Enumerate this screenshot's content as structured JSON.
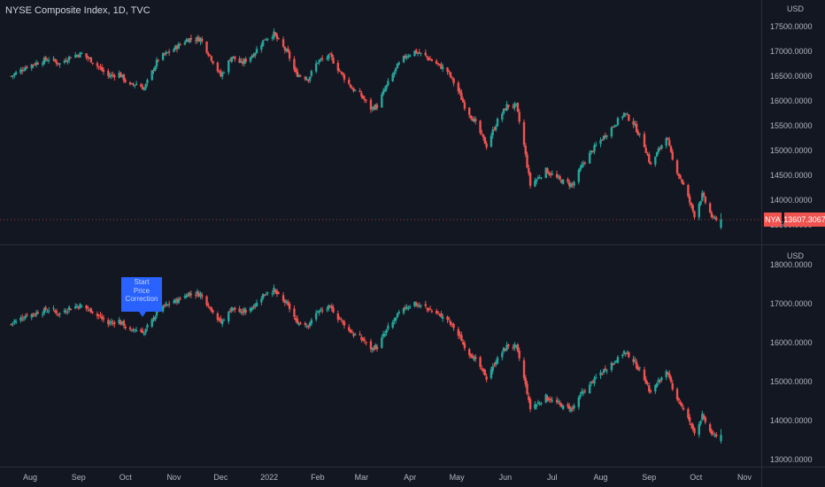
{
  "header": {
    "title": "NYSE Composite Index, 1D, TVC"
  },
  "annotation": {
    "line1": "Start",
    "line2": "Price",
    "line3": "Correction"
  },
  "colors": {
    "background": "#131722",
    "up": "#26a69a",
    "down": "#ef5350",
    "text": "#b2b5be",
    "grid": "#2a2e39",
    "price_tag": "#ef5350",
    "callout": "#2962ff"
  },
  "chart_data": [
    {
      "type": "candlestick",
      "title": "NYSE Composite Index, 1D, TVC",
      "currency": "USD",
      "symbol_tag": "NYA",
      "last_price": "13607.3067",
      "ylim": [
        13050,
        17950
      ],
      "y_ticks": [
        "17500.0000",
        "17000.0000",
        "16500.0000",
        "16000.0000",
        "15500.0000",
        "15000.0000",
        "14500.0000",
        "14000.0000",
        "13500.0000"
      ],
      "x_ticks": [
        "Aug",
        "Sep",
        "Oct",
        "Nov",
        "Dec",
        "2022",
        "Feb",
        "Mar",
        "Apr",
        "May",
        "Jun",
        "Jul",
        "Aug",
        "Sep",
        "Oct",
        "Nov"
      ],
      "path": [
        [
          "2021-07-20",
          16500
        ],
        [
          "2021-07-30",
          16700
        ],
        [
          "2021-08-13",
          16850
        ],
        [
          "2021-08-20",
          16750
        ],
        [
          "2021-08-27",
          16900
        ],
        [
          "2021-09-03",
          16950
        ],
        [
          "2021-09-10",
          16800
        ],
        [
          "2021-09-20",
          16500
        ],
        [
          "2021-09-27",
          16550
        ],
        [
          "2021-10-04",
          16300
        ],
        [
          "2021-10-08",
          16350
        ],
        [
          "2021-10-13",
          16250
        ],
        [
          "2021-10-22",
          16850
        ],
        [
          "2021-11-01",
          17050
        ],
        [
          "2021-11-10",
          17250
        ],
        [
          "2021-11-18",
          17250
        ],
        [
          "2021-11-26",
          16800
        ],
        [
          "2021-12-01",
          16500
        ],
        [
          "2021-12-08",
          16900
        ],
        [
          "2021-12-14",
          16750
        ],
        [
          "2021-12-22",
          16950
        ],
        [
          "2021-12-29",
          17250
        ],
        [
          "2022-01-04",
          17350
        ],
        [
          "2022-01-07",
          17200
        ],
        [
          "2022-01-13",
          16950
        ],
        [
          "2022-01-18",
          16550
        ],
        [
          "2022-01-26",
          16450
        ],
        [
          "2022-02-01",
          16800
        ],
        [
          "2022-02-09",
          16900
        ],
        [
          "2022-02-14",
          16650
        ],
        [
          "2022-02-23",
          16250
        ],
        [
          "2022-03-01",
          16100
        ],
        [
          "2022-03-07",
          15850
        ],
        [
          "2022-03-11",
          15900
        ],
        [
          "2022-03-17",
          16300
        ],
        [
          "2022-03-24",
          16700
        ],
        [
          "2022-03-29",
          16900
        ],
        [
          "2022-04-04",
          17000
        ],
        [
          "2022-04-11",
          16900
        ],
        [
          "2022-04-18",
          16750
        ],
        [
          "2022-04-25",
          16600
        ],
        [
          "2022-05-02",
          16200
        ],
        [
          "2022-05-06",
          15900
        ],
        [
          "2022-05-12",
          15600
        ],
        [
          "2022-05-20",
          15100
        ],
        [
          "2022-05-27",
          15600
        ],
        [
          "2022-06-02",
          15900
        ],
        [
          "2022-06-08",
          15900
        ],
        [
          "2022-06-13",
          15100
        ],
        [
          "2022-06-17",
          14300
        ],
        [
          "2022-06-27",
          14600
        ],
        [
          "2022-07-06",
          14400
        ],
        [
          "2022-07-14",
          14300
        ],
        [
          "2022-07-21",
          14750
        ],
        [
          "2022-07-29",
          15100
        ],
        [
          "2022-08-05",
          15350
        ],
        [
          "2022-08-16",
          15750
        ],
        [
          "2022-08-22",
          15550
        ],
        [
          "2022-08-29",
          15100
        ],
        [
          "2022-09-02",
          14700
        ],
        [
          "2022-09-12",
          15300
        ],
        [
          "2022-09-16",
          14800
        ],
        [
          "2022-09-23",
          14300
        ],
        [
          "2022-09-30",
          13700
        ],
        [
          "2022-10-05",
          14100
        ],
        [
          "2022-10-12",
          13600
        ],
        [
          "2022-10-17",
          13700
        ]
      ]
    },
    {
      "type": "candlestick",
      "currency": "USD",
      "ylim": [
        12900,
        18150
      ],
      "y_ticks": [
        "18000.0000",
        "17000.0000",
        "16000.0000",
        "15000.0000",
        "14000.0000",
        "13000.0000"
      ],
      "x_ticks": [
        "Aug",
        "Sep",
        "Oct",
        "Nov",
        "Dec",
        "2022",
        "Feb",
        "Mar",
        "Apr",
        "May",
        "Jun",
        "Jul",
        "Aug",
        "Sep",
        "Oct",
        "Nov"
      ]
    }
  ]
}
